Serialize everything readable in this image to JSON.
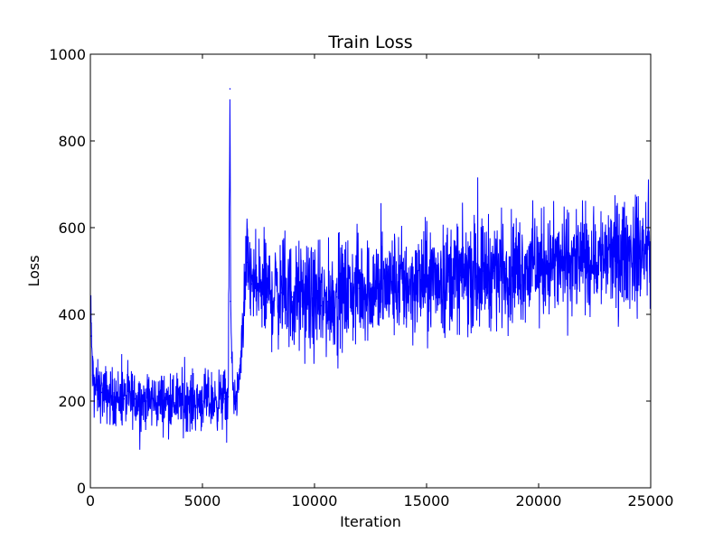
{
  "chart_data": {
    "type": "line",
    "title": "Train Loss",
    "xlabel": "Iteration",
    "ylabel": "Loss",
    "xlim": [
      0,
      25000
    ],
    "ylim": [
      0,
      1000
    ],
    "xticks": [
      0,
      5000,
      10000,
      15000,
      20000,
      25000
    ],
    "yticks": [
      0,
      200,
      400,
      600,
      800,
      1000
    ],
    "grid": false,
    "series": [
      {
        "color": "#0000ff",
        "x": [
          0,
          50,
          100,
          200,
          300,
          500,
          700,
          1000,
          1500,
          2000,
          2500,
          3000,
          3500,
          4000,
          4500,
          5000,
          5500,
          6000,
          6150,
          6230,
          6260,
          6300,
          6400,
          6500,
          6600,
          6700,
          6800,
          6900,
          7000,
          7200,
          7500,
          8000,
          8500,
          9000,
          9500,
          10000,
          10300,
          10600,
          11000,
          11500,
          12000,
          12500,
          13000,
          13500,
          14000,
          14500,
          15000,
          15500,
          16000,
          16500,
          17000,
          17500,
          18000,
          18500,
          19000,
          19500,
          20000,
          20500,
          21000,
          21500,
          22000,
          22500,
          23000,
          23500,
          24000,
          24500,
          25000
        ],
        "values": [
          430,
          350,
          260,
          230,
          225,
          220,
          215,
          210,
          205,
          205,
          200,
          200,
          200,
          200,
          200,
          200,
          200,
          205,
          210,
          920,
          430,
          300,
          210,
          200,
          230,
          280,
          380,
          470,
          520,
          470,
          460,
          450,
          450,
          440,
          440,
          430,
          420,
          430,
          440,
          450,
          460,
          460,
          460,
          470,
          470,
          470,
          480,
          480,
          490,
          490,
          490,
          500,
          500,
          505,
          505,
          510,
          510,
          515,
          515,
          520,
          525,
          530,
          530,
          535,
          540,
          545,
          550
        ]
      }
    ]
  }
}
